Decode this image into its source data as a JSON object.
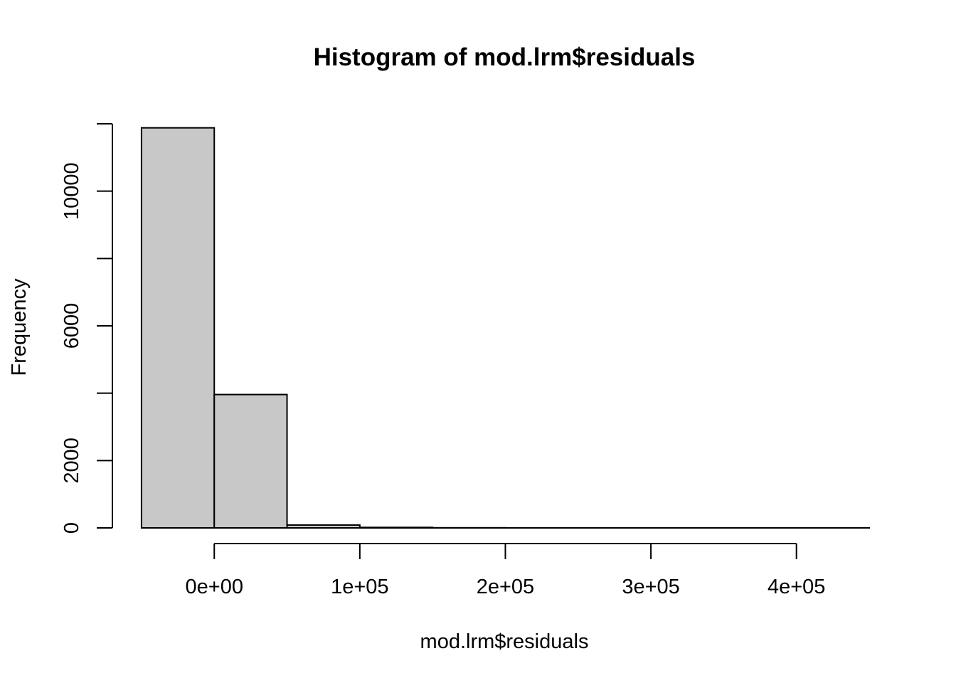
{
  "chart_data": {
    "type": "bar",
    "title": "Histogram of mod.lrm$residuals",
    "xlabel": "mod.lrm$residuals",
    "ylabel": "Frequency",
    "bin_edges": [
      -50000,
      0,
      50000,
      100000,
      150000,
      200000,
      250000,
      300000,
      350000,
      400000,
      450000
    ],
    "values": [
      11880,
      3960,
      85,
      15,
      4,
      2,
      1,
      1,
      1,
      1
    ],
    "xlim": [
      -70000,
      450000
    ],
    "ylim": [
      0,
      12000
    ],
    "x_ticks": [
      0,
      100000,
      200000,
      300000,
      400000
    ],
    "x_tick_labels": [
      "0e+00",
      "1e+05",
      "2e+05",
      "3e+05",
      "4e+05"
    ],
    "y_ticks": [
      0,
      2000,
      4000,
      6000,
      8000,
      10000,
      12000
    ],
    "y_tick_labels": [
      "0",
      "2000",
      "",
      "6000",
      "",
      "10000",
      ""
    ],
    "grid": false,
    "bar_color": "#c8c8c8",
    "line_color": "#000000"
  }
}
